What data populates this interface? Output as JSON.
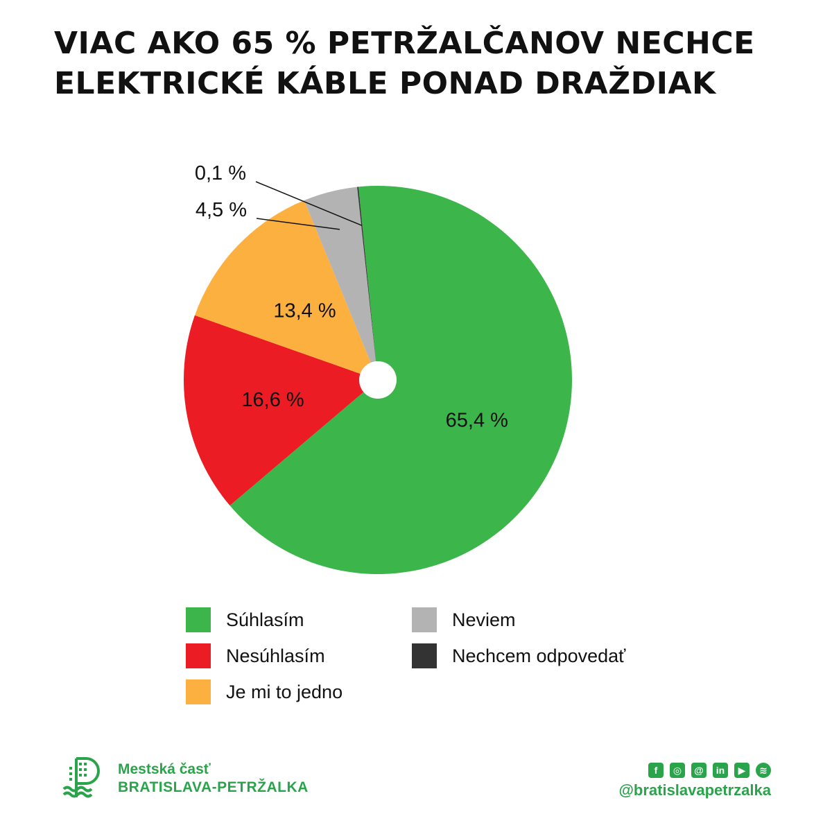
{
  "title": {
    "line1": "VIAC AKO 65 % PETRŽALČANOV NECHCE",
    "line2": "ELEKTRICKÉ KÁBLE PONAD DRAŽDIAK"
  },
  "chart_data": {
    "type": "pie",
    "title": "VIAC AKO 65 % PETRŽALČANOV NECHCE ELEKTRICKÉ KÁBLE PONAD DRAŽDIAK",
    "slices": [
      {
        "name": "Súhlasím",
        "value": 65.4,
        "label": "65,4 %",
        "color": "#3cb54a"
      },
      {
        "name": "Nesúhlasím",
        "value": 16.6,
        "label": "16,6 %",
        "color": "#ec1c24"
      },
      {
        "name": "Je mi to jedno",
        "value": 13.4,
        "label": "13,4 %",
        "color": "#fbb040"
      },
      {
        "name": "Neviem",
        "value": 4.5,
        "label": "4,5 %",
        "color": "#b3b3b3"
      },
      {
        "name": "Nechcem odpovedať",
        "value": 0.1,
        "label": "0,1 %",
        "color": "#333333"
      }
    ],
    "legend_position": "bottom"
  },
  "footer": {
    "org_line1": "Mestská časť",
    "org_line2": "BRATISLAVA-PETRŽALKA",
    "social_icons": [
      "facebook-icon",
      "instagram-icon",
      "threads-icon",
      "linkedin-icon",
      "youtube-icon",
      "spotify-icon"
    ],
    "handle": "@bratislavapetrzalka",
    "brand_color": "#2aa44a"
  }
}
